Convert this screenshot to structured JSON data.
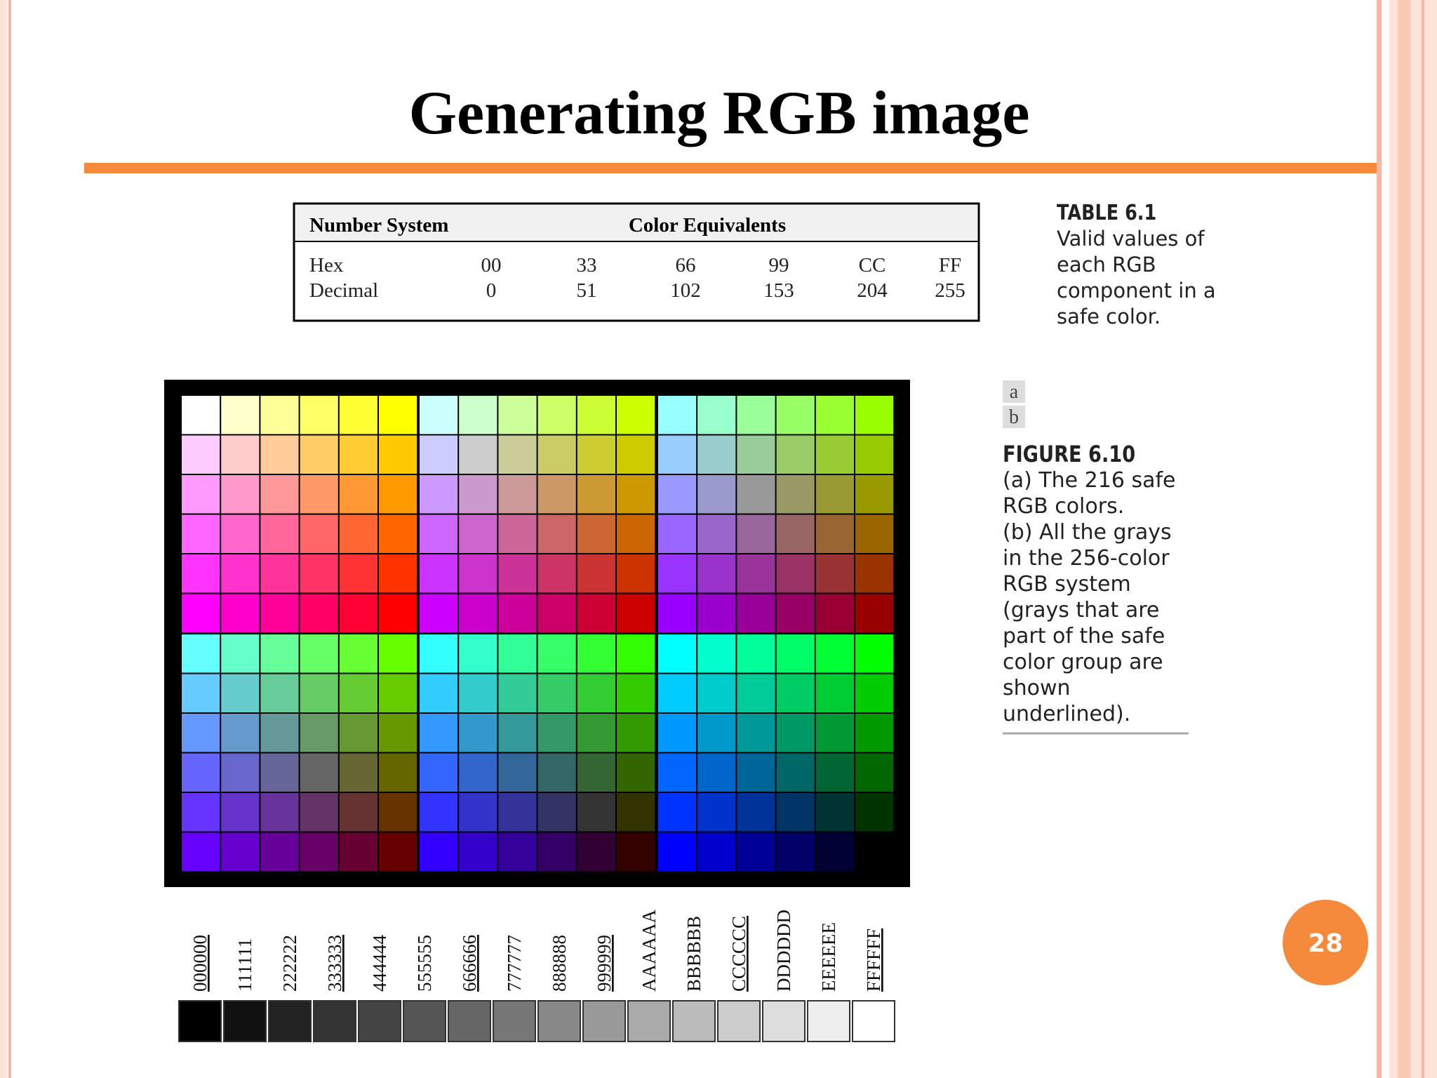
{
  "title": "Generating RGB image",
  "table": {
    "header": [
      "Number System",
      "Color Equivalents"
    ],
    "rows": [
      [
        "Hex",
        "00",
        "33",
        "66",
        "99",
        "CC",
        "FF"
      ],
      [
        "Decimal",
        0,
        51,
        102,
        153,
        204,
        255
      ]
    ],
    "caption_label": "TABLE 6.1",
    "caption_lines": [
      "Valid values of",
      "each RGB",
      "component in a",
      "safe color."
    ]
  },
  "figure": {
    "panel_labels": [
      "a",
      "b"
    ],
    "caption_label": "FIGURE 6.10",
    "caption_lines": [
      "(a) The 216 safe",
      "RGB colors.",
      "(b) All the grays",
      "in the 256-color",
      "RGB system",
      "(grays that are",
      "part of the safe",
      "color group are",
      "shown",
      "underlined)."
    ],
    "grays": [
      {
        "label": "000000",
        "underlined": true
      },
      {
        "label": "111111",
        "underlined": false
      },
      {
        "label": "222222",
        "underlined": false
      },
      {
        "label": "333333",
        "underlined": true
      },
      {
        "label": "444444",
        "underlined": false
      },
      {
        "label": "555555",
        "underlined": false
      },
      {
        "label": "666666",
        "underlined": true
      },
      {
        "label": "777777",
        "underlined": false
      },
      {
        "label": "888888",
        "underlined": false
      },
      {
        "label": "999999",
        "underlined": true
      },
      {
        "label": "AAAAAA",
        "underlined": false
      },
      {
        "label": "BBBBBB",
        "underlined": false
      },
      {
        "label": "CCCCCC",
        "underlined": true
      },
      {
        "label": "DDDDDD",
        "underlined": false
      },
      {
        "label": "EEEEEE",
        "underlined": false
      },
      {
        "label": "FFFFFF",
        "underlined": true
      }
    ]
  },
  "page_number": "28"
}
